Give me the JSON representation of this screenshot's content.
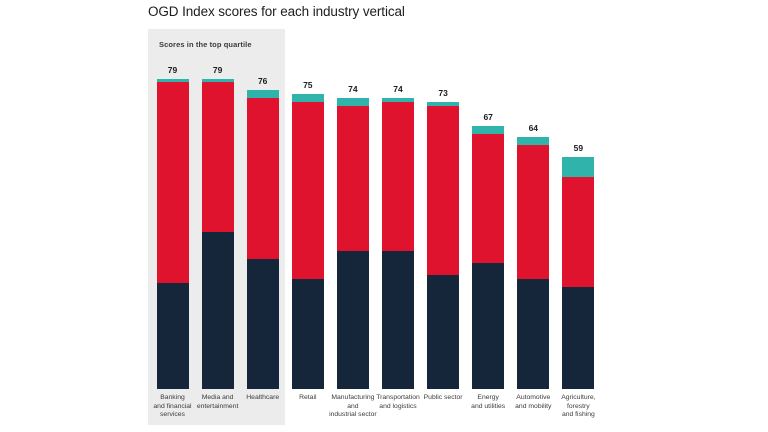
{
  "page": {
    "background": "#ffffff"
  },
  "chart_data": {
    "type": "bar",
    "stacked": true,
    "title": "OGD Index scores for each industry vertical",
    "annotation": {
      "label": "Scores in the top quartile",
      "covers": [
        "Banking and financial services",
        "Media and entertainment",
        "Healthcare"
      ],
      "box_color": "#ececec"
    },
    "categories": [
      "Banking and financial services",
      "Media and entertainment",
      "Healthcare",
      "Retail",
      "Manufacturing and industrial sector",
      "Transportation and logistics",
      "Public sector",
      "Energy and utilities",
      "Automotive and mobility",
      "Agriculture, forestry and fishing"
    ],
    "category_label_lines": [
      [
        "Banking",
        "and financial",
        "services"
      ],
      [
        "Media and",
        "entertainment"
      ],
      [
        "Healthcare"
      ],
      [
        "Retail"
      ],
      [
        "Manufacturing",
        "and",
        "industrial sector"
      ],
      [
        "Transportation",
        "and logistics"
      ],
      [
        "Public sector"
      ],
      [
        "Energy",
        "and utilities"
      ],
      [
        "Automotive",
        "and mobility"
      ],
      [
        "Agriculture,",
        "forestry",
        "and fishing"
      ]
    ],
    "totals": [
      79,
      79,
      76,
      75,
      74,
      74,
      73,
      67,
      64,
      59
    ],
    "series": [
      {
        "name": "navy-bottom-segment",
        "color": "#15263a",
        "values": [
          27,
          40,
          33,
          28,
          35,
          35,
          29,
          32,
          28,
          26
        ]
      },
      {
        "name": "red-middle-segment",
        "color": "#e0132f",
        "values": [
          51,
          38,
          41,
          45,
          37,
          38,
          43,
          33,
          34,
          28
        ]
      },
      {
        "name": "teal-top-segment",
        "color": "#2fb3aa",
        "values": [
          1,
          1,
          2,
          2,
          2,
          1,
          1,
          2,
          2,
          5
        ]
      }
    ],
    "ylim": [
      0,
      85
    ],
    "axes_visible": false,
    "grid": false,
    "legend": "none",
    "value_labels": "above bars",
    "text_colors": {
      "title": "#1d1d1b",
      "values": "#1c1c1c",
      "category_labels": "#3b3b3b"
    }
  }
}
